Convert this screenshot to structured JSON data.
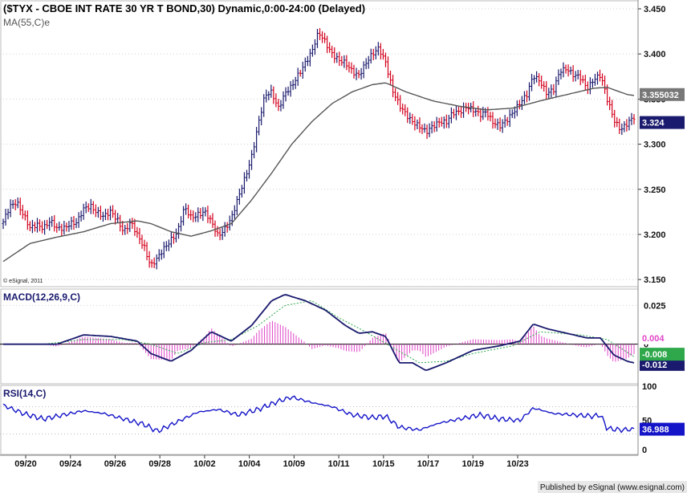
{
  "chart_data": [
    {
      "type": "ohlc",
      "title": "($TYX - CBOE INT RATE 30 YR T BOND,30) Dynamic,0:00-24:00 (Delayed)",
      "indicator_label": "MA(55,C)e",
      "copyright": "© eSignal, 2011",
      "y_ticks": [
        "3.450",
        "3.400",
        "3.350",
        "3.300",
        "3.250",
        "3.200",
        "3.150"
      ],
      "ylim": [
        3.143,
        3.458
      ],
      "last_price_label": "3.324",
      "last_price": 3.324,
      "ma_label": "3.355032",
      "ma_value": 3.355,
      "x_tick_labels": [
        "09/20",
        "09/24",
        "09/26",
        "09/28",
        "10/02",
        "10/04",
        "10/09",
        "10/11",
        "10/15",
        "10/17",
        "10/19",
        "10/23"
      ],
      "close_path": [
        [
          0,
          3.212
        ],
        [
          1,
          3.232
        ],
        [
          2,
          3.238
        ],
        [
          3,
          3.221
        ],
        [
          4,
          3.205
        ],
        [
          5,
          3.212
        ],
        [
          6,
          3.209
        ],
        [
          7,
          3.214
        ],
        [
          8,
          3.205
        ],
        [
          9,
          3.208
        ],
        [
          10,
          3.214
        ],
        [
          11,
          3.212
        ],
        [
          12,
          3.227
        ],
        [
          13,
          3.233
        ],
        [
          14,
          3.226
        ],
        [
          15,
          3.218
        ],
        [
          16,
          3.224
        ],
        [
          17,
          3.218
        ],
        [
          18,
          3.204
        ],
        [
          19,
          3.212
        ],
        [
          20,
          3.198
        ],
        [
          21,
          3.188
        ],
        [
          22,
          3.166
        ],
        [
          23,
          3.172
        ],
        [
          24,
          3.184
        ],
        [
          25,
          3.196
        ],
        [
          26,
          3.204
        ],
        [
          27,
          3.228
        ],
        [
          28,
          3.218
        ],
        [
          29,
          3.224
        ],
        [
          30,
          3.226
        ],
        [
          31,
          3.212
        ],
        [
          32,
          3.198
        ],
        [
          33,
          3.208
        ],
        [
          34,
          3.218
        ],
        [
          35,
          3.238
        ],
        [
          36,
          3.262
        ],
        [
          37,
          3.288
        ],
        [
          38,
          3.322
        ],
        [
          39,
          3.352
        ],
        [
          40,
          3.358
        ],
        [
          41,
          3.342
        ],
        [
          42,
          3.356
        ],
        [
          43,
          3.362
        ],
        [
          44,
          3.378
        ],
        [
          45,
          3.392
        ],
        [
          46,
          3.402
        ],
        [
          47,
          3.422
        ],
        [
          48,
          3.414
        ],
        [
          49,
          3.402
        ],
        [
          50,
          3.392
        ],
        [
          51,
          3.388
        ],
        [
          52,
          3.382
        ],
        [
          53,
          3.378
        ],
        [
          54,
          3.388
        ],
        [
          55,
          3.398
        ],
        [
          56,
          3.408
        ],
        [
          57,
          3.392
        ],
        [
          58,
          3.358
        ],
        [
          59,
          3.342
        ],
        [
          60,
          3.335
        ],
        [
          61,
          3.326
        ],
        [
          62,
          3.318
        ],
        [
          63,
          3.312
        ],
        [
          64,
          3.322
        ],
        [
          65,
          3.326
        ],
        [
          66,
          3.322
        ],
        [
          67,
          3.334
        ],
        [
          68,
          3.338
        ],
        [
          69,
          3.342
        ],
        [
          70,
          3.336
        ],
        [
          71,
          3.332
        ],
        [
          72,
          3.338
        ],
        [
          73,
          3.324
        ],
        [
          74,
          3.318
        ],
        [
          75,
          3.326
        ],
        [
          76,
          3.338
        ],
        [
          77,
          3.346
        ],
        [
          78,
          3.352
        ],
        [
          79,
          3.376
        ],
        [
          80,
          3.372
        ],
        [
          81,
          3.356
        ],
        [
          82,
          3.358
        ],
        [
          83,
          3.382
        ],
        [
          84,
          3.386
        ],
        [
          85,
          3.376
        ],
        [
          86,
          3.372
        ],
        [
          87,
          3.362
        ],
        [
          88,
          3.374
        ],
        [
          89,
          3.376
        ],
        [
          90,
          3.348
        ],
        [
          91,
          3.328
        ],
        [
          92,
          3.318
        ],
        [
          93,
          3.322
        ],
        [
          94,
          3.328
        ]
      ],
      "ma_path": [
        [
          0,
          3.17
        ],
        [
          4,
          3.19
        ],
        [
          8,
          3.197
        ],
        [
          12,
          3.203
        ],
        [
          16,
          3.212
        ],
        [
          20,
          3.215
        ],
        [
          22,
          3.212
        ],
        [
          25,
          3.203
        ],
        [
          28,
          3.198
        ],
        [
          31,
          3.204
        ],
        [
          34,
          3.212
        ],
        [
          37,
          3.238
        ],
        [
          40,
          3.268
        ],
        [
          43,
          3.3
        ],
        [
          46,
          3.325
        ],
        [
          49,
          3.345
        ],
        [
          52,
          3.358
        ],
        [
          55,
          3.366
        ],
        [
          57,
          3.368
        ],
        [
          60,
          3.358
        ],
        [
          64,
          3.348
        ],
        [
          68,
          3.342
        ],
        [
          72,
          3.338
        ],
        [
          76,
          3.34
        ],
        [
          80,
          3.348
        ],
        [
          84,
          3.355
        ],
        [
          88,
          3.362
        ],
        [
          90,
          3.363
        ],
        [
          93,
          3.355
        ],
        [
          94,
          3.354
        ]
      ]
    },
    {
      "type": "macd",
      "label": "MACD(12,26,9,C)",
      "y_ticks": [
        "0.025",
        "0"
      ],
      "ylim": [
        -0.025,
        0.035
      ],
      "last_values": [
        "0.004",
        "-0.008",
        "-0.012"
      ],
      "macd_path": [
        [
          0,
          0.0
        ],
        [
          4,
          0.0
        ],
        [
          8,
          0.0
        ],
        [
          12,
          0.006
        ],
        [
          16,
          0.005
        ],
        [
          20,
          0.002
        ],
        [
          22,
          -0.006
        ],
        [
          25,
          -0.011
        ],
        [
          28,
          -0.004
        ],
        [
          31,
          0.008
        ],
        [
          34,
          0.002
        ],
        [
          37,
          0.012
        ],
        [
          40,
          0.028
        ],
        [
          42,
          0.032
        ],
        [
          45,
          0.028
        ],
        [
          48,
          0.022
        ],
        [
          51,
          0.012
        ],
        [
          53,
          0.007
        ],
        [
          55,
          0.008
        ],
        [
          57,
          0.005
        ],
        [
          59,
          -0.012
        ],
        [
          61,
          -0.012
        ],
        [
          63,
          -0.017
        ],
        [
          66,
          -0.012
        ],
        [
          70,
          -0.004
        ],
        [
          74,
          -0.001
        ],
        [
          77,
          0.002
        ],
        [
          79,
          0.013
        ],
        [
          81,
          0.01
        ],
        [
          84,
          0.007
        ],
        [
          87,
          0.004
        ],
        [
          89,
          0.004
        ],
        [
          91,
          -0.007
        ],
        [
          93,
          -0.011
        ],
        [
          94,
          -0.012
        ]
      ],
      "signal_path": [
        [
          0,
          0.0
        ],
        [
          6,
          0.0
        ],
        [
          12,
          0.003
        ],
        [
          18,
          0.003
        ],
        [
          22,
          0.0
        ],
        [
          26,
          -0.006
        ],
        [
          30,
          0.001
        ],
        [
          34,
          0.003
        ],
        [
          38,
          0.012
        ],
        [
          42,
          0.025
        ],
        [
          46,
          0.028
        ],
        [
          50,
          0.017
        ],
        [
          54,
          0.008
        ],
        [
          58,
          -0.002
        ],
        [
          62,
          -0.012
        ],
        [
          66,
          -0.011
        ],
        [
          70,
          -0.006
        ],
        [
          76,
          -0.001
        ],
        [
          80,
          0.008
        ],
        [
          86,
          0.006
        ],
        [
          90,
          0.003
        ],
        [
          94,
          -0.008
        ]
      ]
    },
    {
      "type": "rsi",
      "label": "RSI(14,C)",
      "y_ticks": [
        "100",
        "50",
        "0"
      ],
      "ylim": [
        0,
        100
      ],
      "last_value": "36.988",
      "rsi_path": [
        [
          0,
          72
        ],
        [
          3,
          60
        ],
        [
          6,
          52
        ],
        [
          9,
          58
        ],
        [
          12,
          64
        ],
        [
          15,
          60
        ],
        [
          18,
          52
        ],
        [
          21,
          44
        ],
        [
          23,
          34
        ],
        [
          26,
          48
        ],
        [
          29,
          62
        ],
        [
          32,
          66
        ],
        [
          35,
          58
        ],
        [
          38,
          66
        ],
        [
          41,
          78
        ],
        [
          43,
          84
        ],
        [
          46,
          76
        ],
        [
          49,
          70
        ],
        [
          52,
          58
        ],
        [
          55,
          54
        ],
        [
          57,
          56
        ],
        [
          59,
          40
        ],
        [
          62,
          36
        ],
        [
          65,
          46
        ],
        [
          68,
          52
        ],
        [
          71,
          58
        ],
        [
          74,
          52
        ],
        [
          77,
          50
        ],
        [
          79,
          68
        ],
        [
          82,
          60
        ],
        [
          85,
          58
        ],
        [
          88,
          56
        ],
        [
          89,
          58
        ],
        [
          90,
          38
        ],
        [
          92,
          36
        ],
        [
          94,
          37
        ]
      ]
    }
  ],
  "footer": "Published by eSignal (www.esignal.com)",
  "colors": {
    "ohlc_down": "#d4001c",
    "ohlc_up": "#1a1a6e",
    "ma": "#555555",
    "macd": "#1a1a6e",
    "histogram": "#e046c8",
    "rsi": "#1414c8"
  }
}
